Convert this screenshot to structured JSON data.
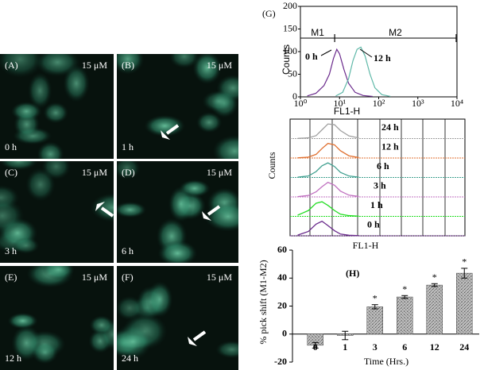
{
  "panels": [
    {
      "label": "(A)",
      "conc": "15 μM",
      "time": "0 h"
    },
    {
      "label": "(B)",
      "conc": "15 μM",
      "time": "1 h"
    },
    {
      "label": "(C)",
      "conc": "15 μM",
      "time": "3 h"
    },
    {
      "label": "(D)",
      "conc": "15 μM",
      "time": "6 h"
    },
    {
      "label": "(E)",
      "conc": "15 μM",
      "time": "12 h"
    },
    {
      "label": "(F)",
      "conc": "15 μM",
      "time": "24 h"
    }
  ],
  "chart_data": [
    {
      "type": "line",
      "label": "(G)",
      "xlabel": "FL1-H",
      "ylabel": "Counts",
      "xlog": true,
      "xlim": [
        1,
        10000
      ],
      "xticks": [
        {
          "value": 1,
          "label": "10⁰"
        },
        {
          "value": 10,
          "label": "10¹"
        },
        {
          "value": 100,
          "label": "10²"
        },
        {
          "value": 1000,
          "label": "10³"
        },
        {
          "value": 10000,
          "label": "10⁴"
        }
      ],
      "ylim": [
        0,
        200
      ],
      "yticks": [
        0,
        50,
        100,
        150,
        200
      ],
      "gates": [
        {
          "name": "M1",
          "range": [
            1,
            7.5
          ]
        },
        {
          "name": "M2",
          "range": [
            7.5,
            9500
          ]
        }
      ],
      "series": [
        {
          "name": "0 h",
          "color": "#6a2a8c",
          "x": [
            1.5,
            2.5,
            4,
            5.5,
            7,
            8.5,
            10,
            13,
            17,
            25,
            40,
            70
          ],
          "values": [
            2,
            8,
            25,
            50,
            85,
            105,
            95,
            60,
            30,
            10,
            3,
            1
          ]
        },
        {
          "name": "12 h",
          "color": "#5fb8a8",
          "x": [
            8,
            12,
            17,
            22,
            28,
            35,
            45,
            60,
            80,
            120,
            200
          ],
          "values": [
            2,
            10,
            40,
            80,
            105,
            110,
            90,
            50,
            20,
            5,
            1
          ]
        }
      ]
    },
    {
      "type": "ridgeline",
      "xlabel": "FL1-H",
      "ylabel": "Counts",
      "xlog": true,
      "xlim": [
        1,
        10000
      ],
      "x": [
        8,
        12,
        16,
        20,
        25,
        32,
        40,
        55,
        80
      ],
      "series": [
        {
          "name": "0 h",
          "color": "#6a2a8c",
          "values": [
            5,
            30,
            80,
            100,
            70,
            35,
            12,
            4,
            1
          ]
        },
        {
          "name": "1 h",
          "color": "#22dd22",
          "values": [
            8,
            40,
            90,
            100,
            75,
            40,
            15,
            5,
            1
          ]
        },
        {
          "name": "3 h",
          "color": "#c070c0",
          "values": [
            2,
            10,
            35,
            70,
            100,
            80,
            40,
            12,
            3
          ]
        },
        {
          "name": "6 h",
          "color": "#40a090",
          "values": [
            2,
            10,
            40,
            80,
            100,
            75,
            35,
            10,
            2
          ]
        },
        {
          "name": "12 h",
          "color": "#e07030",
          "values": [
            1,
            6,
            25,
            65,
            100,
            90,
            50,
            15,
            3
          ]
        },
        {
          "name": "24 h",
          "color": "#a0a0a0",
          "values": [
            1,
            5,
            20,
            60,
            100,
            95,
            55,
            18,
            4
          ]
        }
      ]
    },
    {
      "type": "bar",
      "label": "(H)",
      "xlabel": "Time (Hrs.)",
      "ylabel": "% pick shift (M1-M2)",
      "categories": [
        "0",
        "1",
        "3",
        "6",
        "12",
        "24"
      ],
      "values": [
        -8,
        -1,
        19.5,
        26.5,
        35,
        43.5
      ],
      "errors": [
        2,
        3,
        1.5,
        1,
        1,
        3.5
      ],
      "significance": [
        null,
        null,
        "*",
        "*",
        "*",
        "*"
      ],
      "ylim": [
        -20,
        60
      ],
      "yticks": [
        -20,
        0,
        20,
        40,
        60
      ],
      "color": "#9a9a9a"
    }
  ]
}
